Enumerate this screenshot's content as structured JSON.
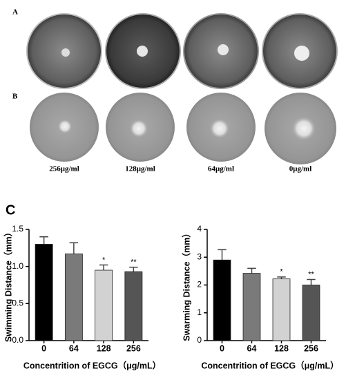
{
  "panel_labels": [
    "A",
    "B",
    "C"
  ],
  "concentration_labels": [
    "256μg/ml",
    "128μg/ml",
    "64μg/ml",
    "0μg/ml"
  ],
  "chart_data": [
    {
      "type": "bar",
      "y_label": "Swimming Distance（mm）",
      "x_label": "Concentrition of EGCG（μg/mL）",
      "categories": [
        "0",
        "64",
        "128",
        "256"
      ],
      "values": [
        1.3,
        1.17,
        0.95,
        0.93
      ],
      "errors": [
        0.1,
        0.15,
        0.07,
        0.06
      ],
      "colors": [
        "#000000",
        "#7a7a7a",
        "#d2d2d2",
        "#555555"
      ],
      "annotations": [
        {
          "text": "*",
          "x": "128"
        },
        {
          "text": "**",
          "x": "256"
        }
      ],
      "ylim": [
        0,
        1.5
      ],
      "yticks": [
        {
          "value": 0,
          "label": "0.0"
        },
        0.5,
        {
          "value": 1,
          "label": "1.0"
        },
        1.5
      ]
    },
    {
      "type": "bar",
      "y_label": "Swarming Distance（mm）",
      "x_label": "Concentrition of EGCG（μg/mL）",
      "categories": [
        "0",
        "64",
        "128",
        "256"
      ],
      "values": [
        2.9,
        2.42,
        2.22,
        2.0
      ],
      "errors": [
        0.37,
        0.18,
        0.07,
        0.2
      ],
      "colors": [
        "#000000",
        "#7a7a7a",
        "#d2d2d2",
        "#555555"
      ],
      "annotations": [
        {
          "text": "*",
          "x": "128"
        },
        {
          "text": "**",
          "x": "256"
        }
      ],
      "ylim": [
        0,
        4
      ],
      "yticks": [
        0,
        1,
        2,
        3,
        4
      ]
    }
  ]
}
